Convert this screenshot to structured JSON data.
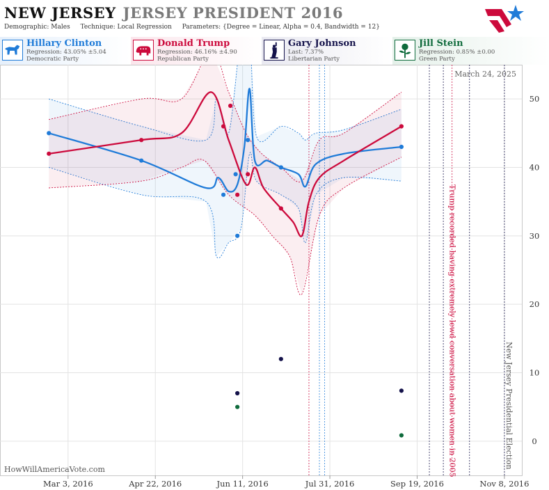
{
  "header": {
    "state": "NEW JERSEY",
    "race": "JERSEY PRESIDENT 2016",
    "demographic": "Demographic: Males",
    "technique": "Technique: Local Regression",
    "parameters": "Parameters: {Degree = Linear, Alpha = 0.4, Bandwidth = 12}"
  },
  "candidates": [
    {
      "name": "Hillary Clinton",
      "line1": "Regression: 43.05% ±5.04",
      "line2": "Democratic Party",
      "color": "#1f7bd8",
      "bg": "#e6f0fb",
      "icon": "donkey-icon"
    },
    {
      "name": "Donald Trump",
      "line1": "Regression: 46.16% ±4.90",
      "line2": "Republican Party",
      "color": "#cc0a3c",
      "bg": "#fbe6ec",
      "icon": "elephant-icon"
    },
    {
      "name": "Gary Johnson",
      "line1": "Last: 7.37%",
      "line2": "Libertarian Party",
      "color": "#14124a",
      "bg": "#e9e9f1",
      "icon": "statue-of-liberty-icon"
    },
    {
      "name": "Jill Stein",
      "line1": "Regression: 0.85% ±0.00",
      "line2": "Green Party",
      "color": "#0f6b3c",
      "bg": "#e5f1ea",
      "icon": "rose-icon"
    }
  ],
  "footer": "HowWillAmericaVote.com",
  "chart_data": {
    "type": "line",
    "date_label": "March 24, 2025",
    "x_tick_labels": [
      "Mar 3, 2016",
      "Apr 22, 2016",
      "Jun 11, 2016",
      "Jul 31, 2016",
      "Sep 19, 2016",
      "Nov 8, 2016"
    ],
    "x_range": [
      "2016-01-24",
      "2016-11-18"
    ],
    "y_ticks": [
      0,
      10,
      20,
      30,
      40,
      50
    ],
    "y_range": [
      -5,
      55
    ],
    "grid": true,
    "annotations": [
      {
        "date": "2016-10-07",
        "text": "Trump recorded having extremely lewd conversation about women in 2005",
        "color": "#cc0a3c"
      },
      {
        "date": "2016-11-08",
        "text": "New Jersey Presidential Election",
        "color": "#555555"
      }
    ],
    "event_lines": [
      {
        "date": "2016-07-19",
        "color": "#cc0a3c"
      },
      {
        "date": "2016-07-25",
        "color": "#1f7bd8"
      },
      {
        "date": "2016-07-28",
        "color": "#1f7bd8"
      },
      {
        "date": "2016-09-26",
        "color": "#14124a"
      },
      {
        "date": "2016-10-04",
        "color": "#14124a"
      },
      {
        "date": "2016-10-09",
        "color": "#cc0a3c"
      },
      {
        "date": "2016-10-19",
        "color": "#14124a"
      },
      {
        "date": "2016-11-08",
        "color": "#14124a"
      }
    ],
    "series": [
      {
        "name": "Hillary Clinton",
        "color": "#1f7bd8",
        "line": [
          [
            "2016-02-21",
            45
          ],
          [
            "2016-04-14",
            41
          ],
          [
            "2016-05-21",
            37
          ],
          [
            "2016-05-28",
            38.5
          ],
          [
            "2016-06-03",
            36.5
          ],
          [
            "2016-06-08",
            37.5
          ],
          [
            "2016-06-12",
            43
          ],
          [
            "2016-06-15",
            51.5
          ],
          [
            "2016-06-18",
            41
          ],
          [
            "2016-06-25",
            41
          ],
          [
            "2016-07-03",
            40
          ],
          [
            "2016-07-13",
            39
          ],
          [
            "2016-07-17",
            37.2
          ],
          [
            "2016-07-23",
            40.5
          ],
          [
            "2016-08-08",
            42
          ],
          [
            "2016-09-10",
            43
          ]
        ],
        "upper": [
          [
            "2016-02-21",
            50
          ],
          [
            "2016-04-14",
            46
          ],
          [
            "2016-05-21",
            44
          ],
          [
            "2016-05-27",
            50
          ],
          [
            "2016-06-03",
            45
          ],
          [
            "2016-06-10",
            59
          ],
          [
            "2016-06-15",
            60
          ],
          [
            "2016-06-19",
            44.5
          ],
          [
            "2016-07-03",
            46
          ],
          [
            "2016-07-13",
            45
          ],
          [
            "2016-07-17",
            44
          ],
          [
            "2016-07-23",
            45
          ],
          [
            "2016-08-08",
            45.5
          ],
          [
            "2016-09-10",
            48.5
          ]
        ],
        "lower": [
          [
            "2016-02-21",
            40
          ],
          [
            "2016-04-14",
            36
          ],
          [
            "2016-05-21",
            35
          ],
          [
            "2016-05-27",
            27
          ],
          [
            "2016-06-03",
            29
          ],
          [
            "2016-06-10",
            31
          ],
          [
            "2016-06-15",
            42
          ],
          [
            "2016-06-19",
            38
          ],
          [
            "2016-07-03",
            36
          ],
          [
            "2016-07-13",
            34
          ],
          [
            "2016-07-17",
            29
          ],
          [
            "2016-07-23",
            36
          ],
          [
            "2016-08-08",
            38.5
          ],
          [
            "2016-09-10",
            38
          ]
        ],
        "points": [
          [
            "2016-02-21",
            45
          ],
          [
            "2016-04-14",
            41
          ],
          [
            "2016-05-31",
            36
          ],
          [
            "2016-06-07",
            39
          ],
          [
            "2016-06-08",
            30
          ],
          [
            "2016-06-14",
            44
          ],
          [
            "2016-07-03",
            40
          ],
          [
            "2016-09-10",
            43
          ]
        ]
      },
      {
        "name": "Donald Trump",
        "color": "#cc0a3c",
        "line": [
          [
            "2016-02-21",
            42
          ],
          [
            "2016-04-14",
            44
          ],
          [
            "2016-05-07",
            45
          ],
          [
            "2016-05-24",
            51
          ],
          [
            "2016-06-03",
            44
          ],
          [
            "2016-06-13",
            37.5
          ],
          [
            "2016-06-18",
            40
          ],
          [
            "2016-06-23",
            37
          ],
          [
            "2016-07-03",
            34
          ],
          [
            "2016-07-10",
            32
          ],
          [
            "2016-07-15",
            30
          ],
          [
            "2016-07-19",
            35
          ],
          [
            "2016-07-25",
            38.5
          ],
          [
            "2016-08-08",
            41
          ],
          [
            "2016-09-10",
            46
          ]
        ],
        "upper": [
          [
            "2016-02-21",
            47
          ],
          [
            "2016-04-14",
            50
          ],
          [
            "2016-05-07",
            50
          ],
          [
            "2016-05-24",
            57
          ],
          [
            "2016-06-03",
            51
          ],
          [
            "2016-06-13",
            45
          ],
          [
            "2016-06-22",
            42
          ],
          [
            "2016-07-03",
            40
          ],
          [
            "2016-07-15",
            38
          ],
          [
            "2016-07-25",
            44
          ],
          [
            "2016-08-08",
            45
          ],
          [
            "2016-09-10",
            51
          ]
        ],
        "lower": [
          [
            "2016-02-21",
            37
          ],
          [
            "2016-04-14",
            38
          ],
          [
            "2016-05-07",
            40
          ],
          [
            "2016-05-20",
            41
          ],
          [
            "2016-06-03",
            36
          ],
          [
            "2016-06-18",
            33
          ],
          [
            "2016-06-28",
            30
          ],
          [
            "2016-07-08",
            27
          ],
          [
            "2016-07-15",
            21.5
          ],
          [
            "2016-07-25",
            33
          ],
          [
            "2016-08-08",
            37
          ],
          [
            "2016-09-10",
            41.5
          ]
        ],
        "points": [
          [
            "2016-02-21",
            42
          ],
          [
            "2016-04-14",
            44
          ],
          [
            "2016-05-31",
            46
          ],
          [
            "2016-06-04",
            49
          ],
          [
            "2016-06-08",
            36
          ],
          [
            "2016-06-14",
            39
          ],
          [
            "2016-07-03",
            34
          ],
          [
            "2016-09-10",
            46
          ]
        ]
      },
      {
        "name": "Gary Johnson",
        "color": "#14124a",
        "points": [
          [
            "2016-06-08",
            7
          ],
          [
            "2016-07-03",
            12
          ],
          [
            "2016-09-10",
            7.37
          ]
        ]
      },
      {
        "name": "Jill Stein",
        "color": "#0f6b3c",
        "points": [
          [
            "2016-06-08",
            5
          ],
          [
            "2016-09-10",
            0.85
          ]
        ]
      }
    ]
  }
}
